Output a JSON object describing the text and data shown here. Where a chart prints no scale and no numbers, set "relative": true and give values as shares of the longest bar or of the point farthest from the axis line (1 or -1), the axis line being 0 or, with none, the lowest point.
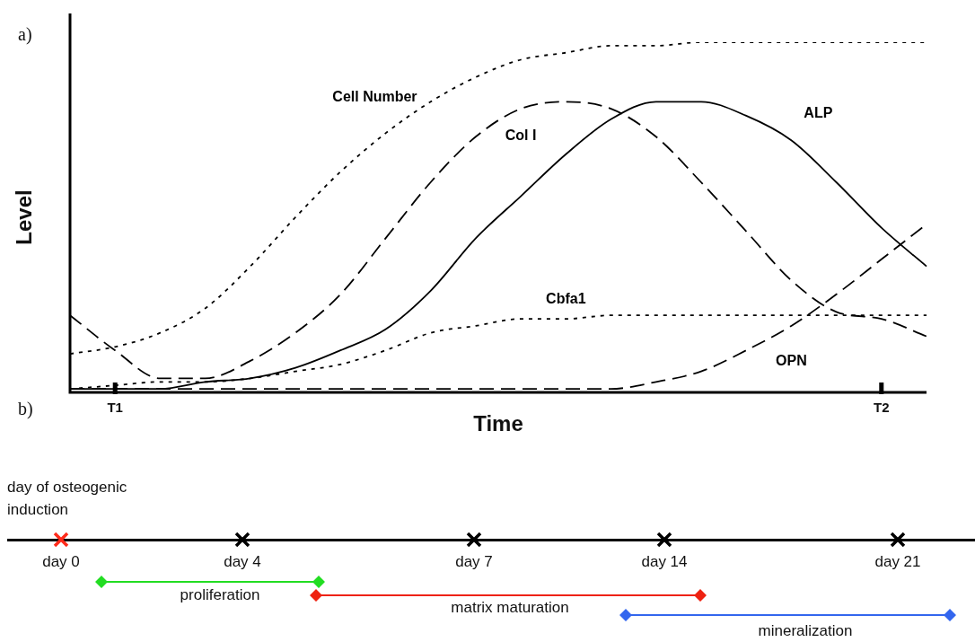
{
  "chart_data": [
    {
      "type": "line",
      "relative": true,
      "xlabel": "Time",
      "ylabel": "Level",
      "legend": false,
      "marker": "none",
      "categories": [
        null,
        "T1",
        null,
        null,
        null,
        null,
        null,
        null,
        null,
        null,
        null,
        null,
        null,
        null,
        null,
        null,
        null,
        null,
        "T2",
        null
      ],
      "annotations": [
        "a)",
        "b)"
      ],
      "series": [
        {
          "name": "Cell Number",
          "color": "#000000",
          "line_style": "dotted",
          "values": [
            0.11,
            0.13,
            0.17,
            0.24,
            0.36,
            0.5,
            0.63,
            0.74,
            0.83,
            0.9,
            0.95,
            0.97,
            0.99,
            0.99,
            1,
            1,
            1,
            1,
            1,
            1
          ]
        },
        {
          "name": "Col I",
          "color": "#000000",
          "line_style": "dashed",
          "values": [
            0.22,
            0.12,
            0.04,
            0.04,
            0.09,
            0.17,
            0.28,
            0.44,
            0.6,
            0.73,
            0.81,
            0.83,
            0.81,
            0.73,
            0.6,
            0.46,
            0.32,
            0.23,
            0.21,
            0.16
          ]
        },
        {
          "name": "ALP",
          "color": "#000000",
          "line_style": "solid",
          "values": [
            0.01,
            0.01,
            0.01,
            0.03,
            0.04,
            0.07,
            0.12,
            0.18,
            0.29,
            0.44,
            0.56,
            0.68,
            0.78,
            0.83,
            0.83,
            0.79,
            0.72,
            0.6,
            0.47,
            0.36
          ]
        },
        {
          "name": "Cbfa1",
          "color": "#000000",
          "line_style": "dotted",
          "values": [
            0.01,
            0.02,
            0.03,
            0.03,
            0.04,
            0.06,
            0.08,
            0.12,
            0.17,
            0.19,
            0.21,
            0.21,
            0.22,
            0.22,
            0.22,
            0.22,
            0.22,
            0.22,
            0.22,
            0.22
          ]
        },
        {
          "name": "OPN",
          "color": "#000000",
          "line_style": "dashed",
          "values": [
            0.01,
            0.01,
            0.01,
            0.01,
            0.01,
            0.01,
            0.01,
            0.01,
            0.01,
            0.01,
            0.01,
            0.01,
            0.01,
            0.03,
            0.06,
            0.12,
            0.19,
            0.28,
            0.38,
            0.48
          ]
        }
      ]
    },
    {
      "type": "other",
      "annotations": [
        "day of osteogenic induction",
        "day 0",
        "day 4",
        "day 7",
        "day 14",
        "day 21",
        "proliferation",
        "matrix maturation",
        "mineralization"
      ]
    }
  ]
}
